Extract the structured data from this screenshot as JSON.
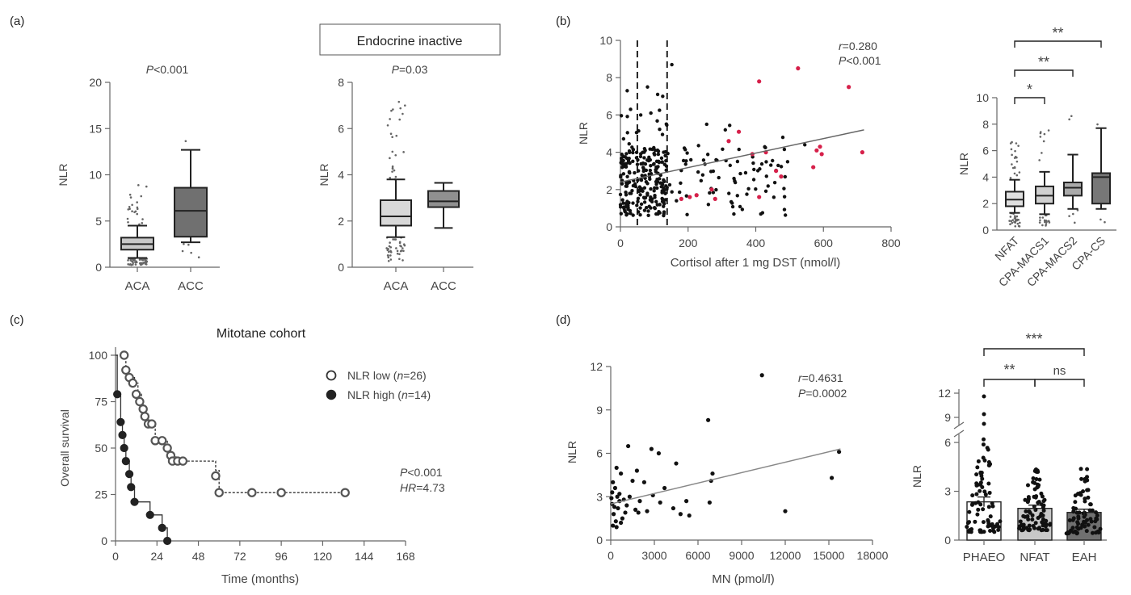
{
  "panels": {
    "a": "(a)",
    "b": "(b)",
    "c": "(c)",
    "d": "(d)"
  },
  "chart_data": [
    {
      "id": "a_all",
      "type": "box",
      "title": "P<0.001",
      "p_label": "P",
      "p_rest": "<0.001",
      "xlabel": "",
      "ylabel": "NLR",
      "ylim": [
        0,
        20
      ],
      "yticks": [
        0,
        5,
        10,
        15,
        20
      ],
      "categories": [
        "ACA",
        "ACC"
      ],
      "boxes": [
        {
          "name": "ACA",
          "min": 1.0,
          "q1": 1.9,
          "median": 2.5,
          "q3": 3.2,
          "max": 4.5,
          "fill": "#c8c8c8"
        },
        {
          "name": "ACC",
          "min": 2.7,
          "q1": 3.3,
          "median": 6.1,
          "q3": 8.6,
          "max": 12.7,
          "fill": "#707070"
        }
      ]
    },
    {
      "id": "a_endo",
      "type": "box",
      "header": "Endocrine inactive",
      "title": "P=0.03",
      "p_label": "P",
      "p_rest": "=0.03",
      "ylabel": "NLR",
      "ylim": [
        0,
        8
      ],
      "yticks": [
        0,
        2,
        4,
        6,
        8
      ],
      "categories": [
        "ACA",
        "ACC"
      ],
      "boxes": [
        {
          "name": "ACA",
          "min": 1.3,
          "q1": 1.8,
          "median": 2.2,
          "q3": 2.9,
          "max": 3.8,
          "fill": "#d8d8d8"
        },
        {
          "name": "ACC",
          "min": 1.7,
          "q1": 2.6,
          "median": 2.85,
          "q3": 3.3,
          "max": 3.65,
          "fill": "#909090"
        }
      ]
    },
    {
      "id": "b_scatter",
      "type": "scatter",
      "xlabel": "Cortisol after 1 mg DST (nmol/l)",
      "ylabel": "NLR",
      "xlim": [
        0,
        800
      ],
      "ylim": [
        0,
        10
      ],
      "xticks": [
        0,
        200,
        400,
        600,
        800
      ],
      "yticks": [
        0,
        2,
        4,
        6,
        8,
        10
      ],
      "vlines": [
        50,
        138
      ],
      "stat_r_label": "r",
      "stat_r": "=0.280",
      "stat_p_label": "P",
      "stat_p": "<0.001",
      "fit": [
        [
          0,
          2.4
        ],
        [
          720,
          5.2
        ]
      ],
      "red_points": [
        [
          410,
          7.8
        ],
        [
          525,
          8.5
        ],
        [
          675,
          7.5
        ],
        [
          715,
          4.0
        ],
        [
          350,
          5.1
        ],
        [
          390,
          3.9
        ],
        [
          430,
          4.0
        ],
        [
          320,
          4.6
        ],
        [
          460,
          3.0
        ],
        [
          475,
          2.7
        ],
        [
          570,
          3.2
        ],
        [
          580,
          4.1
        ],
        [
          590,
          4.3
        ],
        [
          595,
          3.9
        ],
        [
          270,
          2.0
        ],
        [
          280,
          1.5
        ],
        [
          225,
          1.7
        ],
        [
          205,
          1.6
        ],
        [
          180,
          1.5
        ],
        [
          410,
          1.6
        ]
      ]
    },
    {
      "id": "b_box",
      "type": "box",
      "ylabel": "NLR",
      "ylim": [
        0,
        10
      ],
      "yticks": [
        0,
        2,
        4,
        6,
        8,
        10
      ],
      "categories": [
        "NFAT",
        "CPA-MACS1",
        "CPA-MACS2",
        "CPA-CS"
      ],
      "boxes": [
        {
          "name": "NFAT",
          "min": 1.3,
          "q1": 1.8,
          "median": 2.3,
          "q3": 2.9,
          "max": 3.8,
          "fill": "#e0e0e0"
        },
        {
          "name": "CPA-MACS1",
          "min": 1.2,
          "q1": 2.0,
          "median": 2.6,
          "q3": 3.3,
          "max": 4.4,
          "fill": "#d0d0d0"
        },
        {
          "name": "CPA-MACS2",
          "min": 1.6,
          "q1": 2.6,
          "median": 3.2,
          "q3": 3.6,
          "max": 5.7,
          "fill": "#aaaaaa"
        },
        {
          "name": "CPA-CS",
          "min": 1.6,
          "q1": 2.0,
          "median": 4.0,
          "q3": 4.3,
          "max": 7.7,
          "fill": "#777777"
        }
      ],
      "sig": [
        "*",
        "**",
        "**"
      ]
    },
    {
      "id": "c_km",
      "type": "line",
      "header": "Mitotane cohort",
      "xlabel": "Time (months)",
      "ylabel": "Overall survival",
      "xlim": [
        0,
        168
      ],
      "ylim": [
        0,
        100
      ],
      "xticks": [
        0,
        24,
        48,
        72,
        96,
        120,
        144,
        168
      ],
      "yticks": [
        0,
        25,
        50,
        75,
        100
      ],
      "series": [
        {
          "name": "NLR low",
          "n_label": "n",
          "n_value": "=26",
          "style": "open",
          "steps": [
            [
              0,
              100
            ],
            [
              4,
              100
            ],
            [
              6,
              92
            ],
            [
              8,
              88
            ],
            [
              11,
              85
            ],
            [
              13,
              79
            ],
            [
              15,
              75
            ],
            [
              16,
              71
            ],
            [
              18,
              67
            ],
            [
              19,
              63
            ],
            [
              23,
              54
            ],
            [
              28,
              54
            ],
            [
              30,
              50
            ],
            [
              32,
              46
            ],
            [
              35,
              43
            ],
            [
              58,
              38
            ],
            [
              60,
              26
            ],
            [
              134,
              26
            ]
          ],
          "markers": [
            [
              5,
              100
            ],
            [
              6,
              92
            ],
            [
              8,
              88
            ],
            [
              10,
              85
            ],
            [
              12,
              79
            ],
            [
              14,
              75
            ],
            [
              16,
              71
            ],
            [
              17,
              67
            ],
            [
              19,
              63
            ],
            [
              21,
              63
            ],
            [
              23,
              54
            ],
            [
              27,
              54
            ],
            [
              30,
              50
            ],
            [
              32,
              46
            ],
            [
              33,
              43
            ],
            [
              36,
              43
            ],
            [
              39,
              43
            ],
            [
              58,
              35
            ],
            [
              60,
              26
            ],
            [
              79,
              26
            ],
            [
              96,
              26
            ],
            [
              133,
              26
            ]
          ]
        },
        {
          "name": "NLR high",
          "n_label": "n",
          "n_value": "=14",
          "style": "filled",
          "steps": [
            [
              0,
              100
            ],
            [
              1,
              79
            ],
            [
              3,
              64
            ],
            [
              4,
              57
            ],
            [
              5,
              50
            ],
            [
              6,
              43
            ],
            [
              8,
              36
            ],
            [
              9,
              29
            ],
            [
              11,
              21
            ],
            [
              20,
              14
            ],
            [
              27,
              7
            ],
            [
              30,
              0
            ]
          ],
          "markers": [
            [
              1,
              79
            ],
            [
              3,
              64
            ],
            [
              4,
              57
            ],
            [
              5,
              50
            ],
            [
              6,
              43
            ],
            [
              8,
              36
            ],
            [
              9,
              29
            ],
            [
              11,
              21
            ],
            [
              20,
              14
            ],
            [
              27,
              7
            ],
            [
              30,
              0
            ]
          ]
        }
      ],
      "stat_p_label": "P",
      "stat_p": "<0.001",
      "stat_hr_label": "HR",
      "stat_hr": "=4.73"
    },
    {
      "id": "d_scatter",
      "type": "scatter",
      "xlabel": "MN (pmol/l)",
      "ylabel": "NLR",
      "xlim": [
        0,
        18000
      ],
      "ylim": [
        0,
        12
      ],
      "xticks": [
        0,
        3000,
        6000,
        9000,
        12000,
        15000,
        18000
      ],
      "yticks": [
        0,
        3,
        6,
        9,
        12
      ],
      "stat_r_label": "r",
      "stat_r": "=0.4631",
      "stat_p_label": "P",
      "stat_p": "=0.0002",
      "fit": [
        [
          0,
          2.5
        ],
        [
          15800,
          6.3
        ]
      ],
      "points": [
        [
          10400,
          11.4
        ],
        [
          6700,
          8.3
        ],
        [
          15700,
          6.1
        ],
        [
          1200,
          6.5
        ],
        [
          2800,
          6.3
        ],
        [
          3300,
          6.0
        ],
        [
          4500,
          5.3
        ],
        [
          7000,
          4.6
        ],
        [
          15200,
          4.3
        ],
        [
          400,
          5.0
        ],
        [
          1800,
          4.8
        ],
        [
          700,
          4.6
        ],
        [
          1500,
          4.1
        ],
        [
          2300,
          4.0
        ],
        [
          3700,
          3.6
        ],
        [
          6900,
          4.1
        ],
        [
          5200,
          2.7
        ],
        [
          6800,
          2.6
        ],
        [
          12000,
          2.0
        ],
        [
          4300,
          2.2
        ],
        [
          4800,
          1.8
        ],
        [
          5400,
          1.7
        ],
        [
          2500,
          2.0
        ],
        [
          1700,
          2.1
        ],
        [
          900,
          2.8
        ],
        [
          600,
          3.2
        ],
        [
          300,
          3.6
        ],
        [
          100,
          2.5
        ],
        [
          200,
          1.8
        ],
        [
          350,
          1.3
        ],
        [
          150,
          1.0
        ],
        [
          500,
          2.2
        ],
        [
          800,
          1.5
        ],
        [
          1100,
          2.4
        ],
        [
          1300,
          3.0
        ],
        [
          2000,
          2.7
        ],
        [
          2900,
          3.1
        ],
        [
          400,
          0.9
        ],
        [
          50,
          2.9
        ],
        [
          250,
          2.3
        ],
        [
          700,
          1.2
        ],
        [
          1000,
          1.9
        ],
        [
          3400,
          2.6
        ],
        [
          100,
          3.3
        ],
        [
          600,
          2.7
        ],
        [
          1900,
          1.9
        ],
        [
          150,
          4.0
        ],
        [
          450,
          3.0
        ]
      ]
    },
    {
      "id": "d_bar",
      "type": "bar",
      "ylabel": "NLR",
      "categories": [
        "PHAEO",
        "NFAT",
        "EAH"
      ],
      "values": [
        2.35,
        1.95,
        1.7
      ],
      "errors": [
        0.3,
        0.2,
        0.2
      ],
      "fills": [
        "#ffffff",
        "#c8c8c8",
        "#707070"
      ],
      "yticks_lower": [
        0,
        3,
        6
      ],
      "yticks_upper": [
        9,
        12
      ],
      "sig": [
        "**",
        "ns",
        "***"
      ]
    }
  ]
}
